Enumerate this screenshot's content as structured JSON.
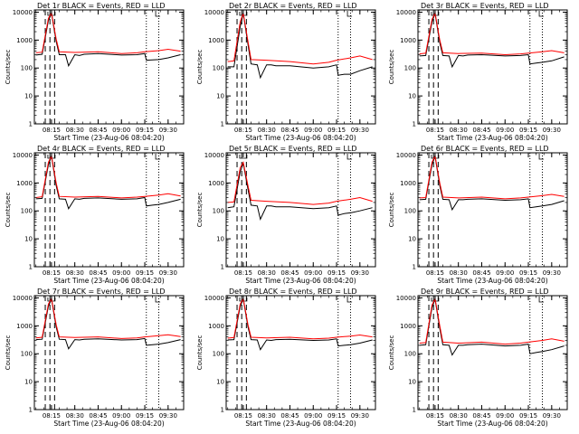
{
  "figure": {
    "xlabel": "Start Time (23-Aug-06 08:04:20)",
    "ylabel": "Counts/sec"
  },
  "chart_data": [
    {
      "type": "line",
      "title": "Det 1r BLACK = Events, RED = LLD",
      "xlabel": "Start Time (23-Aug-06 08:04:20)",
      "ylabel": "Counts/sec",
      "x_ticks": [
        "08:15",
        "08:30",
        "08:45",
        "09:00",
        "09:15",
        "09:30"
      ],
      "y_ticks": [
        "1",
        "10",
        "100",
        "1000",
        "10000"
      ],
      "yscale": "log",
      "ylim": [
        1,
        12000
      ],
      "dashed_markers": [
        "08:11",
        "08:14",
        "08:17"
      ],
      "dotted_markers": [
        "09:16",
        "09:24"
      ],
      "peak": 9000,
      "series": [
        {
          "color": "#000000",
          "x": [
            "08:05",
            "08:09",
            "08:13",
            "08:15",
            "08:18",
            "08:20",
            "08:24",
            "08:26",
            "08:30",
            "08:33",
            "08:36",
            "08:45",
            "09:00",
            "09:10",
            "09:15",
            "09:16",
            "09:20",
            "09:24",
            "09:30",
            "09:38"
          ],
          "y": [
            290,
            310,
            5000,
            9000,
            900,
            300,
            300,
            120,
            300,
            280,
            310,
            330,
            290,
            300,
            330,
            190,
            195,
            200,
            230,
            300
          ]
        },
        {
          "color": "#ff0000",
          "x": [
            "08:05",
            "08:09",
            "08:13",
            "08:15",
            "08:18",
            "08:20",
            "08:30",
            "08:45",
            "09:00",
            "09:10",
            "09:15",
            "09:24",
            "09:30",
            "09:38"
          ],
          "y": [
            350,
            370,
            6000,
            9500,
            1100,
            380,
            360,
            380,
            330,
            350,
            380,
            420,
            470,
            400
          ]
        }
      ]
    },
    {
      "type": "line",
      "title": "Det 2r BLACK = Events, RED = LLD",
      "xlabel": "Start Time (23-Aug-06 08:04:20)",
      "ylabel": "Counts/sec",
      "x_ticks": [
        "08:15",
        "08:30",
        "08:45",
        "09:00",
        "09:15",
        "09:30"
      ],
      "y_ticks": [
        "1",
        "10",
        "100",
        "1000",
        "10000"
      ],
      "yscale": "log",
      "ylim": [
        1,
        12000
      ],
      "dashed_markers": [
        "08:11",
        "08:14",
        "08:17"
      ],
      "dotted_markers": [
        "09:16",
        "09:24"
      ],
      "peak": 9000,
      "series": [
        {
          "color": "#000000",
          "x": [
            "08:05",
            "08:09",
            "08:13",
            "08:15",
            "08:18",
            "08:20",
            "08:24",
            "08:26",
            "08:30",
            "08:33",
            "08:36",
            "08:45",
            "09:00",
            "09:10",
            "09:15",
            "09:16",
            "09:20",
            "09:24",
            "09:30",
            "09:38"
          ],
          "y": [
            110,
            110,
            3000,
            9000,
            700,
            140,
            130,
            45,
            130,
            130,
            120,
            120,
            100,
            110,
            130,
            55,
            60,
            60,
            80,
            110
          ]
        },
        {
          "color": "#ff0000",
          "x": [
            "08:05",
            "08:09",
            "08:13",
            "08:15",
            "08:18",
            "08:20",
            "08:30",
            "08:45",
            "09:00",
            "09:10",
            "09:15",
            "09:24",
            "09:30",
            "09:38"
          ],
          "y": [
            170,
            180,
            4500,
            9300,
            900,
            200,
            190,
            170,
            140,
            160,
            190,
            230,
            270,
            200
          ]
        }
      ]
    },
    {
      "type": "line",
      "title": "Det 3r BLACK = Events, RED = LLD",
      "xlabel": "Start Time (23-Aug-06 08:04:20)",
      "ylabel": "Counts/sec",
      "x_ticks": [
        "08:15",
        "08:30",
        "08:45",
        "09:00",
        "09:15",
        "09:30"
      ],
      "y_ticks": [
        "1",
        "10",
        "100",
        "1000",
        "10000"
      ],
      "yscale": "log",
      "ylim": [
        1,
        12000
      ],
      "dashed_markers": [
        "08:11",
        "08:14",
        "08:17"
      ],
      "dotted_markers": [
        "09:16",
        "09:24"
      ],
      "peak": 9000,
      "series": [
        {
          "color": "#000000",
          "x": [
            "08:05",
            "08:09",
            "08:13",
            "08:15",
            "08:18",
            "08:20",
            "08:24",
            "08:26",
            "08:30",
            "08:33",
            "08:36",
            "08:45",
            "09:00",
            "09:10",
            "09:15",
            "09:16",
            "09:20",
            "09:24",
            "09:30",
            "09:38"
          ],
          "y": [
            270,
            280,
            4500,
            9000,
            800,
            280,
            270,
            110,
            280,
            270,
            290,
            300,
            270,
            280,
            300,
            140,
            150,
            160,
            180,
            250
          ]
        },
        {
          "color": "#ff0000",
          "x": [
            "08:05",
            "08:09",
            "08:13",
            "08:15",
            "08:18",
            "08:20",
            "08:30",
            "08:45",
            "09:00",
            "09:10",
            "09:15",
            "09:24",
            "09:30",
            "09:38"
          ],
          "y": [
            320,
            340,
            5500,
            9400,
            1000,
            350,
            330,
            340,
            300,
            320,
            340,
            380,
            420,
            350
          ]
        }
      ]
    },
    {
      "type": "line",
      "title": "Det 4r BLACK = Events, RED = LLD",
      "xlabel": "Start Time (23-Aug-06 08:04:20)",
      "ylabel": "Counts/sec",
      "x_ticks": [
        "08:15",
        "08:30",
        "08:45",
        "09:00",
        "09:15",
        "09:30"
      ],
      "y_ticks": [
        "1",
        "10",
        "100",
        "1000",
        "10000"
      ],
      "yscale": "log",
      "ylim": [
        1,
        12000
      ],
      "dashed_markers": [
        "08:11",
        "08:14",
        "08:17"
      ],
      "dotted_markers": [
        "09:16",
        "09:24"
      ],
      "peak": 9000,
      "series": [
        {
          "color": "#000000",
          "x": [
            "08:05",
            "08:09",
            "08:13",
            "08:15",
            "08:18",
            "08:20",
            "08:24",
            "08:26",
            "08:30",
            "08:33",
            "08:36",
            "08:45",
            "09:00",
            "09:10",
            "09:15",
            "09:16",
            "09:20",
            "09:24",
            "09:30",
            "09:38"
          ],
          "y": [
            270,
            280,
            4500,
            9000,
            800,
            270,
            260,
            120,
            270,
            260,
            280,
            290,
            260,
            270,
            300,
            150,
            160,
            170,
            200,
            260
          ]
        },
        {
          "color": "#ff0000",
          "x": [
            "08:05",
            "08:09",
            "08:13",
            "08:15",
            "08:18",
            "08:20",
            "08:30",
            "08:45",
            "09:00",
            "09:10",
            "09:15",
            "09:24",
            "09:30",
            "09:38"
          ],
          "y": [
            300,
            320,
            5500,
            9400,
            1000,
            330,
            310,
            330,
            290,
            310,
            330,
            370,
            410,
            340
          ]
        }
      ]
    },
    {
      "type": "line",
      "title": "Det 5r BLACK = Events, RED = LLD",
      "xlabel": "Start Time (23-Aug-06 08:04:20)",
      "ylabel": "Counts/sec",
      "x_ticks": [
        "08:15",
        "08:30",
        "08:45",
        "09:00",
        "09:15",
        "09:30"
      ],
      "y_ticks": [
        "1",
        "10",
        "100",
        "1000",
        "10000"
      ],
      "yscale": "log",
      "ylim": [
        1,
        12000
      ],
      "dashed_markers": [
        "08:11",
        "08:14",
        "08:17"
      ],
      "dotted_markers": [
        "09:16",
        "09:24"
      ],
      "peak": 5000,
      "series": [
        {
          "color": "#000000",
          "x": [
            "08:05",
            "08:09",
            "08:13",
            "08:15",
            "08:18",
            "08:20",
            "08:24",
            "08:26",
            "08:30",
            "08:33",
            "08:36",
            "08:45",
            "09:00",
            "09:10",
            "09:15",
            "09:16",
            "09:20",
            "09:24",
            "09:30",
            "09:38"
          ],
          "y": [
            130,
            140,
            2500,
            5000,
            600,
            160,
            150,
            50,
            150,
            150,
            140,
            140,
            120,
            130,
            150,
            70,
            80,
            85,
            100,
            130
          ]
        },
        {
          "color": "#ff0000",
          "x": [
            "08:05",
            "08:09",
            "08:13",
            "08:15",
            "08:18",
            "08:20",
            "08:30",
            "08:45",
            "09:00",
            "09:10",
            "09:15",
            "09:24",
            "09:30",
            "09:38"
          ],
          "y": [
            200,
            210,
            3500,
            5500,
            800,
            240,
            220,
            200,
            170,
            190,
            220,
            260,
            300,
            220
          ]
        }
      ]
    },
    {
      "type": "line",
      "title": "Det 6r BLACK = Events, RED = LLD",
      "xlabel": "Start Time (23-Aug-06 08:04:20)",
      "ylabel": "Counts/sec",
      "x_ticks": [
        "08:15",
        "08:30",
        "08:45",
        "09:00",
        "09:15",
        "09:30"
      ],
      "y_ticks": [
        "1",
        "10",
        "100",
        "1000",
        "10000"
      ],
      "yscale": "log",
      "ylim": [
        1,
        12000
      ],
      "dashed_markers": [
        "08:11",
        "08:14",
        "08:17"
      ],
      "dotted_markers": [
        "09:16",
        "09:24"
      ],
      "peak": 9000,
      "series": [
        {
          "color": "#000000",
          "x": [
            "08:05",
            "08:09",
            "08:13",
            "08:15",
            "08:18",
            "08:20",
            "08:24",
            "08:26",
            "08:30",
            "08:33",
            "08:36",
            "08:45",
            "09:00",
            "09:10",
            "09:15",
            "09:16",
            "09:20",
            "09:24",
            "09:30",
            "09:38"
          ],
          "y": [
            250,
            260,
            4500,
            9000,
            800,
            260,
            250,
            110,
            250,
            250,
            260,
            270,
            240,
            250,
            270,
            130,
            140,
            150,
            170,
            230
          ]
        },
        {
          "color": "#ff0000",
          "x": [
            "08:05",
            "08:09",
            "08:13",
            "08:15",
            "08:18",
            "08:20",
            "08:30",
            "08:45",
            "09:00",
            "09:10",
            "09:15",
            "09:24",
            "09:30",
            "09:38"
          ],
          "y": [
            290,
            300,
            5500,
            9400,
            1000,
            310,
            290,
            310,
            270,
            290,
            310,
            350,
            390,
            330
          ]
        }
      ]
    },
    {
      "type": "line",
      "title": "Det 7r BLACK = Events, RED = LLD",
      "xlabel": "Start Time (23-Aug-06 08:04:20)",
      "ylabel": "Counts/sec",
      "x_ticks": [
        "08:15",
        "08:30",
        "08:45",
        "09:00",
        "09:15",
        "09:30"
      ],
      "y_ticks": [
        "1",
        "10",
        "100",
        "1000",
        "10000"
      ],
      "yscale": "log",
      "ylim": [
        1,
        12000
      ],
      "dashed_markers": [
        "08:11",
        "08:14",
        "08:17"
      ],
      "dotted_markers": [
        "09:16",
        "09:24"
      ],
      "peak": 9000,
      "series": [
        {
          "color": "#000000",
          "x": [
            "08:05",
            "08:09",
            "08:13",
            "08:15",
            "08:18",
            "08:20",
            "08:24",
            "08:26",
            "08:30",
            "08:33",
            "08:36",
            "08:45",
            "09:00",
            "09:10",
            "09:15",
            "09:16",
            "09:20",
            "09:24",
            "09:30",
            "09:38"
          ],
          "y": [
            320,
            330,
            5000,
            9000,
            900,
            330,
            320,
            150,
            320,
            310,
            330,
            340,
            310,
            320,
            350,
            200,
            210,
            220,
            250,
            320
          ]
        },
        {
          "color": "#ff0000",
          "x": [
            "08:05",
            "08:09",
            "08:13",
            "08:15",
            "08:18",
            "08:20",
            "08:30",
            "08:45",
            "09:00",
            "09:10",
            "09:15",
            "09:24",
            "09:30",
            "09:38"
          ],
          "y": [
            370,
            390,
            6000,
            9500,
            1100,
            400,
            380,
            400,
            350,
            370,
            400,
            440,
            480,
            410
          ]
        }
      ]
    },
    {
      "type": "line",
      "title": "Det 8r BLACK = Events, RED = LLD",
      "xlabel": "Start Time (23-Aug-06 08:04:20)",
      "ylabel": "Counts/sec",
      "x_ticks": [
        "08:15",
        "08:30",
        "08:45",
        "09:00",
        "09:15",
        "09:30"
      ],
      "y_ticks": [
        "1",
        "10",
        "100",
        "1000",
        "10000"
      ],
      "yscale": "log",
      "ylim": [
        1,
        12000
      ],
      "dashed_markers": [
        "08:11",
        "08:14",
        "08:17"
      ],
      "dotted_markers": [
        "09:16",
        "09:24"
      ],
      "peak": 9000,
      "series": [
        {
          "color": "#000000",
          "x": [
            "08:05",
            "08:09",
            "08:13",
            "08:15",
            "08:18",
            "08:20",
            "08:24",
            "08:26",
            "08:30",
            "08:33",
            "08:36",
            "08:45",
            "09:00",
            "09:10",
            "09:15",
            "09:16",
            "09:20",
            "09:24",
            "09:30",
            "09:38"
          ],
          "y": [
            310,
            320,
            5000,
            9000,
            900,
            320,
            310,
            140,
            310,
            300,
            320,
            330,
            300,
            310,
            340,
            190,
            200,
            210,
            240,
            310
          ]
        },
        {
          "color": "#ff0000",
          "x": [
            "08:05",
            "08:09",
            "08:13",
            "08:15",
            "08:18",
            "08:20",
            "08:30",
            "08:45",
            "09:00",
            "09:10",
            "09:15",
            "09:24",
            "09:30",
            "09:38"
          ],
          "y": [
            360,
            380,
            6000,
            9500,
            1100,
            390,
            370,
            390,
            340,
            360,
            390,
            430,
            470,
            400
          ]
        }
      ]
    },
    {
      "type": "line",
      "title": "Det 9r BLACK = Events, RED = LLD",
      "xlabel": "Start Time (23-Aug-06 08:04:20)",
      "ylabel": "Counts/sec",
      "x_ticks": [
        "08:15",
        "08:30",
        "08:45",
        "09:00",
        "09:15",
        "09:30"
      ],
      "y_ticks": [
        "1",
        "10",
        "100",
        "1000",
        "10000"
      ],
      "yscale": "log",
      "ylim": [
        1,
        12000
      ],
      "dashed_markers": [
        "08:11",
        "08:14",
        "08:17"
      ],
      "dotted_markers": [
        "09:16",
        "09:24"
      ],
      "peak": 9000,
      "series": [
        {
          "color": "#000000",
          "x": [
            "08:05",
            "08:09",
            "08:13",
            "08:15",
            "08:18",
            "08:20",
            "08:24",
            "08:26",
            "08:30",
            "08:33",
            "08:36",
            "08:45",
            "09:00",
            "09:10",
            "09:15",
            "09:16",
            "09:20",
            "09:24",
            "09:30",
            "09:38"
          ],
          "y": [
            200,
            210,
            4500,
            9000,
            800,
            210,
            200,
            90,
            200,
            200,
            210,
            220,
            190,
            200,
            220,
            100,
            110,
            120,
            140,
            190
          ]
        },
        {
          "color": "#ff0000",
          "x": [
            "08:05",
            "08:09",
            "08:13",
            "08:15",
            "08:18",
            "08:20",
            "08:30",
            "08:45",
            "09:00",
            "09:10",
            "09:15",
            "09:24",
            "09:30",
            "09:38"
          ],
          "y": [
            240,
            250,
            5500,
            9400,
            1000,
            260,
            240,
            260,
            220,
            240,
            260,
            300,
            340,
            280
          ]
        }
      ]
    }
  ]
}
